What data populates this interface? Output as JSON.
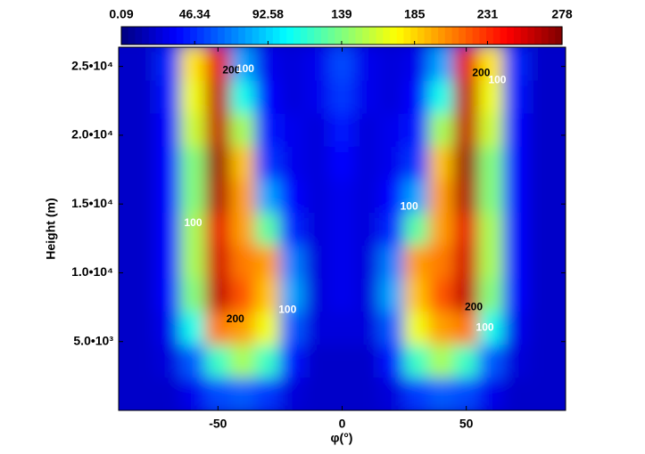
{
  "chart_data": {
    "type": "heatmap",
    "colormap": "jet",
    "xlabel": "φ(°)",
    "ylabel": "Height (m)",
    "x": [
      -90,
      -80,
      -70,
      -60,
      -50,
      -40,
      -30,
      -20,
      -10,
      0,
      10,
      20,
      30,
      40,
      50,
      60,
      70,
      80,
      90
    ],
    "y": [
      1200,
      3600,
      6000,
      8400,
      10800,
      13200,
      15600,
      18000,
      20400,
      22800,
      25200
    ],
    "z": [
      [
        20,
        20,
        20,
        30,
        55,
        60,
        50,
        25,
        20,
        20,
        20,
        25,
        50,
        60,
        55,
        30,
        20,
        20,
        20
      ],
      [
        20,
        20,
        25,
        60,
        120,
        150,
        120,
        40,
        20,
        20,
        20,
        40,
        120,
        150,
        120,
        60,
        25,
        20,
        20
      ],
      [
        20,
        20,
        30,
        110,
        210,
        200,
        170,
        60,
        25,
        25,
        25,
        60,
        170,
        200,
        210,
        110,
        30,
        20,
        20
      ],
      [
        20,
        20,
        35,
        140,
        260,
        220,
        190,
        80,
        25,
        30,
        25,
        80,
        190,
        220,
        260,
        140,
        35,
        20,
        20
      ],
      [
        20,
        20,
        35,
        150,
        255,
        210,
        200,
        70,
        25,
        30,
        25,
        70,
        200,
        210,
        255,
        150,
        35,
        20,
        20
      ],
      [
        20,
        20,
        35,
        150,
        250,
        200,
        130,
        45,
        25,
        30,
        25,
        45,
        130,
        200,
        250,
        150,
        35,
        20,
        20
      ],
      [
        20,
        20,
        35,
        140,
        265,
        200,
        80,
        35,
        25,
        30,
        25,
        35,
        80,
        200,
        265,
        140,
        35,
        20,
        20
      ],
      [
        20,
        20,
        35,
        140,
        270,
        190,
        50,
        30,
        25,
        35,
        25,
        30,
        50,
        190,
        270,
        140,
        35,
        20,
        20
      ],
      [
        20,
        20,
        35,
        160,
        260,
        150,
        40,
        30,
        25,
        40,
        25,
        30,
        40,
        150,
        260,
        160,
        35,
        20,
        20
      ],
      [
        20,
        20,
        40,
        170,
        260,
        110,
        35,
        25,
        30,
        50,
        30,
        25,
        35,
        110,
        260,
        170,
        40,
        20,
        20
      ],
      [
        20,
        20,
        45,
        180,
        250,
        80,
        30,
        25,
        30,
        55,
        30,
        25,
        30,
        80,
        250,
        180,
        45,
        20,
        20
      ]
    ],
    "xlim": [
      -90,
      90
    ],
    "ylim": [
      0,
      26400
    ],
    "xticks": [
      -50,
      0,
      50
    ],
    "yticks": [
      {
        "value": 5000,
        "label": "5.0•10³"
      },
      {
        "value": 10000,
        "label": "1.0•10⁴"
      },
      {
        "value": 15000,
        "label": "1.5•10⁴"
      },
      {
        "value": 20000,
        "label": "2.0•10⁴"
      },
      {
        "value": 25000,
        "label": "2.5•10⁴"
      }
    ],
    "zlim": [
      0.09,
      278
    ],
    "cticks": [
      0.09,
      46.34,
      92.58,
      139,
      185,
      231,
      278
    ],
    "annotations": [
      {
        "text": "200",
        "x": -44.6,
        "y": 24700,
        "color": "black"
      },
      {
        "text": "100",
        "x": -39,
        "y": 24800,
        "color": "white"
      },
      {
        "text": "100",
        "x": -60,
        "y": 13600,
        "color": "white"
      },
      {
        "text": "200",
        "x": -43,
        "y": 6600,
        "color": "black"
      },
      {
        "text": "100",
        "x": -22,
        "y": 7300,
        "color": "white"
      },
      {
        "text": "100",
        "x": 27,
        "y": 14800,
        "color": "white"
      },
      {
        "text": "200",
        "x": 56,
        "y": 24500,
        "color": "black"
      },
      {
        "text": "100",
        "x": 62.5,
        "y": 24000,
        "color": "white"
      },
      {
        "text": "200",
        "x": 53,
        "y": 7500,
        "color": "black"
      },
      {
        "text": "100",
        "x": 57.5,
        "y": 6000,
        "color": "white"
      }
    ]
  }
}
